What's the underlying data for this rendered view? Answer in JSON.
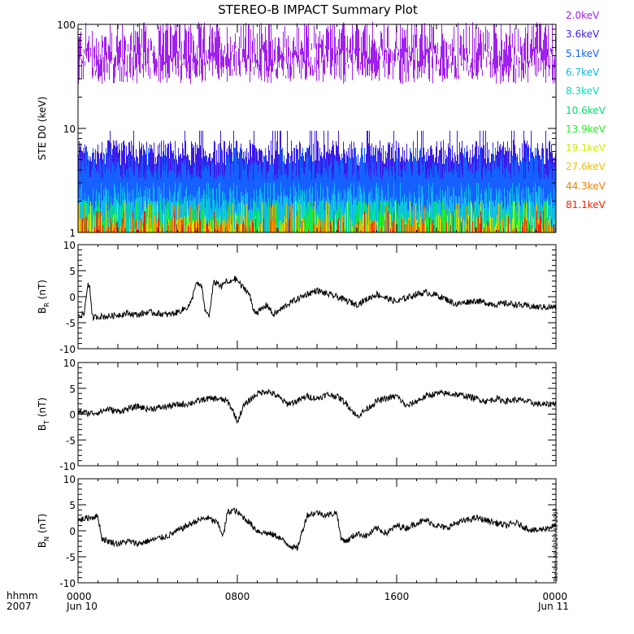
{
  "chart_data": [
    {
      "type": "line",
      "title": "STEREO-B IMPACT Summary Plot",
      "ylabel": "STE D0 (keV)",
      "yscale": "log",
      "ylim": [
        1,
        100
      ],
      "yticks": [
        "1",
        "10",
        "100"
      ],
      "x_range_hours": [
        0,
        24
      ],
      "series": [
        {
          "name": "2.0keV",
          "color": "#a020f0",
          "typical_level": 60,
          "spike_max": 100,
          "spike_min": 32
        },
        {
          "name": "3.6keV",
          "color": "#3a1be8",
          "typical_level": 5.5,
          "spike_max": 9.5,
          "spike_min": 2.5
        },
        {
          "name": "5.1keV",
          "color": "#1560ff",
          "typical_level": 4.0,
          "spike_max": 6.5,
          "spike_min": 2.0
        },
        {
          "name": "6.7keV",
          "color": "#10b8e8",
          "typical_level": 2.0,
          "spike_max": 3.0,
          "spike_min": 1.0
        },
        {
          "name": "8.3keV",
          "color": "#00e0c0",
          "typical_level": 1.5,
          "spike_max": 2.0,
          "spike_min": 1.0
        },
        {
          "name": "10.6keV",
          "color": "#00e070",
          "typical_level": 1.3,
          "spike_max": 2.0,
          "spike_min": 1.0
        },
        {
          "name": "13.9keV",
          "color": "#20f020",
          "typical_level": 1.2,
          "spike_max": 2.0,
          "spike_min": 1.0
        },
        {
          "name": "19.1keV",
          "color": "#c8f000",
          "typical_level": 1.1,
          "spike_max": 2.0,
          "spike_min": 1.0
        },
        {
          "name": "27.6keV",
          "color": "#f0c000",
          "typical_level": 1.05,
          "spike_max": 1.9,
          "spike_min": 1.0
        },
        {
          "name": "44.3keV",
          "color": "#f08000",
          "typical_level": 1.02,
          "spike_max": 1.8,
          "spike_min": 1.0
        },
        {
          "name": "81.1keV",
          "color": "#f02000",
          "typical_level": 1.01,
          "spike_max": 1.6,
          "spike_min": 1.0
        }
      ]
    },
    {
      "type": "line",
      "ylabel_main": "B",
      "ylabel_sub": "R",
      "ylabel_unit": " (nT)",
      "ylim": [
        -10,
        10
      ],
      "yticks": [
        "10",
        "5",
        "0",
        "-5",
        "-10"
      ],
      "series": [
        {
          "color": "#000000",
          "x": [
            0,
            0.3,
            0.5,
            0.6,
            0.7,
            0.8,
            1.0,
            1.5,
            2.0,
            2.5,
            3.0,
            3.5,
            4.0,
            4.5,
            5.0,
            5.5,
            5.7,
            5.9,
            6.2,
            6.4,
            6.6,
            6.8,
            7.0,
            7.2,
            7.4,
            7.6,
            7.8,
            8.0,
            8.2,
            8.4,
            8.6,
            8.8,
            9.0,
            9.2,
            9.5,
            9.8,
            10.0,
            10.5,
            11.0,
            11.5,
            12.0,
            12.5,
            13.0,
            13.5,
            14.0,
            14.5,
            15.0,
            15.5,
            16.0,
            16.5,
            17.0,
            17.5,
            18.0,
            18.5,
            19.0,
            19.5,
            20.0,
            20.5,
            21.0,
            21.5,
            22.0,
            22.5,
            23.0,
            23.5,
            24.0
          ],
          "y": [
            -3.5,
            -3.5,
            2.8,
            1.5,
            -3.8,
            -4.0,
            -3.8,
            -3.8,
            -3.5,
            -3.2,
            -3.5,
            -3.0,
            -3.2,
            -3.5,
            -3.0,
            -2.0,
            -1.0,
            2.5,
            2.0,
            -3.0,
            -3.5,
            2.5,
            2.8,
            1.8,
            3.0,
            2.5,
            3.5,
            3.2,
            2.0,
            1.5,
            0.5,
            -2.5,
            -3.0,
            -2.5,
            -1.5,
            -3.5,
            -3.0,
            -1.5,
            -0.5,
            0.5,
            1.2,
            0.5,
            0.0,
            -0.8,
            -1.5,
            -0.5,
            0.5,
            -0.3,
            -1.0,
            -0.2,
            0.5,
            0.8,
            0.3,
            -0.5,
            -1.5,
            -1.0,
            -0.8,
            -1.2,
            -1.5,
            -1.3,
            -1.5,
            -1.8,
            -2.0,
            -2.0,
            -2.0
          ]
        }
      ]
    },
    {
      "type": "line",
      "ylabel_main": "B",
      "ylabel_sub": "T",
      "ylabel_unit": " (nT)",
      "ylim": [
        -10,
        10
      ],
      "yticks": [
        "10",
        "5",
        "0",
        "-5",
        "-10"
      ],
      "series": [
        {
          "color": "#000000",
          "x": [
            0,
            0.5,
            1.0,
            1.5,
            2.0,
            2.5,
            3.0,
            3.5,
            4.0,
            4.5,
            5.0,
            5.5,
            6.0,
            6.5,
            7.0,
            7.5,
            7.8,
            8.0,
            8.3,
            8.7,
            9.0,
            9.5,
            10.0,
            10.5,
            11.0,
            11.5,
            12.0,
            12.5,
            13.0,
            13.5,
            14.0,
            14.5,
            15.0,
            15.5,
            16.0,
            16.5,
            17.0,
            17.5,
            18.0,
            18.5,
            19.0,
            19.5,
            20.0,
            20.5,
            21.0,
            21.5,
            22.0,
            22.5,
            23.0,
            23.5,
            24.0
          ],
          "y": [
            0.5,
            0.2,
            0.3,
            1.0,
            0.5,
            1.0,
            1.5,
            1.0,
            1.2,
            1.5,
            1.8,
            2.0,
            2.5,
            3.0,
            3.0,
            2.5,
            0.5,
            -1.5,
            1.5,
            3.0,
            4.0,
            4.5,
            3.5,
            2.0,
            2.5,
            3.5,
            3.0,
            3.8,
            3.5,
            2.0,
            -0.5,
            1.0,
            2.5,
            3.0,
            3.5,
            1.5,
            2.5,
            3.5,
            4.0,
            4.0,
            3.8,
            3.5,
            3.0,
            2.5,
            3.0,
            2.5,
            2.8,
            2.5,
            2.0,
            1.8,
            2.2
          ]
        }
      ]
    },
    {
      "type": "line",
      "ylabel_main": "B",
      "ylabel_sub": "N",
      "ylabel_unit": " (nT)",
      "ylim": [
        -10,
        10
      ],
      "yticks": [
        "10",
        "5",
        "0",
        "-5",
        "-10"
      ],
      "series": [
        {
          "color": "#000000",
          "x": [
            0,
            0.5,
            1.0,
            1.2,
            1.5,
            2.0,
            2.5,
            3.0,
            3.5,
            4.0,
            4.5,
            5.0,
            5.5,
            6.0,
            6.5,
            7.0,
            7.3,
            7.5,
            7.8,
            8.0,
            8.5,
            9.0,
            9.5,
            10.0,
            10.5,
            11.0,
            11.5,
            12.0,
            12.5,
            13.0,
            13.2,
            13.5,
            14.0,
            14.5,
            15.0,
            15.5,
            16.0,
            16.5,
            17.0,
            17.5,
            18.0,
            18.5,
            19.0,
            19.5,
            20.0,
            20.5,
            21.0,
            21.5,
            22.0,
            22.5,
            23.0,
            23.5,
            24.0
          ],
          "y": [
            2.0,
            2.5,
            2.8,
            -1.5,
            -2.0,
            -2.5,
            -2.0,
            -2.5,
            -2.0,
            -1.5,
            -1.0,
            0.0,
            1.0,
            2.0,
            2.5,
            1.5,
            -1.0,
            3.5,
            4.0,
            3.5,
            2.0,
            0.0,
            -0.5,
            -1.0,
            -2.5,
            -3.5,
            3.0,
            3.5,
            3.0,
            3.5,
            -1.5,
            -2.0,
            -0.5,
            -1.0,
            0.5,
            -0.5,
            1.0,
            0.5,
            1.5,
            2.0,
            1.0,
            0.5,
            1.5,
            2.0,
            2.5,
            2.0,
            1.5,
            1.0,
            1.5,
            0.5,
            0.0,
            0.5,
            1.0
          ]
        }
      ]
    }
  ],
  "x_axis": {
    "ticks_hours": [
      0,
      8,
      16,
      24
    ],
    "tick_labels": [
      "0000",
      "0800",
      "1600",
      "0000"
    ],
    "date_labels": [
      "Jun 10",
      "Jun 11"
    ],
    "format_label": "hhmm",
    "year_label": "2007"
  },
  "stamp": "Tue Oct 30 12:27:43 2007"
}
